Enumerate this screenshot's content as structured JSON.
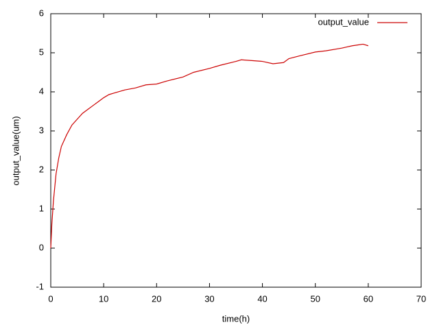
{
  "chart_data": {
    "type": "line",
    "x_label": "time(h)",
    "y_label": "output_value(um)",
    "x": [
      0,
      0.2,
      0.5,
      1,
      1.5,
      2,
      3,
      4,
      5,
      6,
      7,
      8,
      9,
      10,
      11,
      12,
      14,
      16,
      18,
      20,
      22,
      25,
      27,
      30,
      32,
      35,
      36,
      38,
      40,
      42,
      44,
      45,
      47,
      50,
      52,
      55,
      57,
      58,
      59,
      60
    ],
    "series": [
      {
        "name": "output_value",
        "color": "#cc0000",
        "values": [
          0,
          0.6,
          1.2,
          1.9,
          2.3,
          2.6,
          2.9,
          3.15,
          3.3,
          3.45,
          3.55,
          3.65,
          3.75,
          3.85,
          3.93,
          3.97,
          4.05,
          4.1,
          4.18,
          4.2,
          4.28,
          4.38,
          4.5,
          4.6,
          4.68,
          4.78,
          4.82,
          4.8,
          4.78,
          4.72,
          4.75,
          4.85,
          4.92,
          5.02,
          5.05,
          5.12,
          5.18,
          5.2,
          5.22,
          5.18
        ]
      }
    ],
    "xlim": [
      0,
      70
    ],
    "xticks": [
      0,
      10,
      20,
      30,
      40,
      50,
      60,
      70
    ],
    "ylim": [
      -1,
      6
    ],
    "yticks": [
      -1,
      0,
      1,
      2,
      3,
      4,
      5,
      6
    ],
    "legend": "top-right"
  }
}
